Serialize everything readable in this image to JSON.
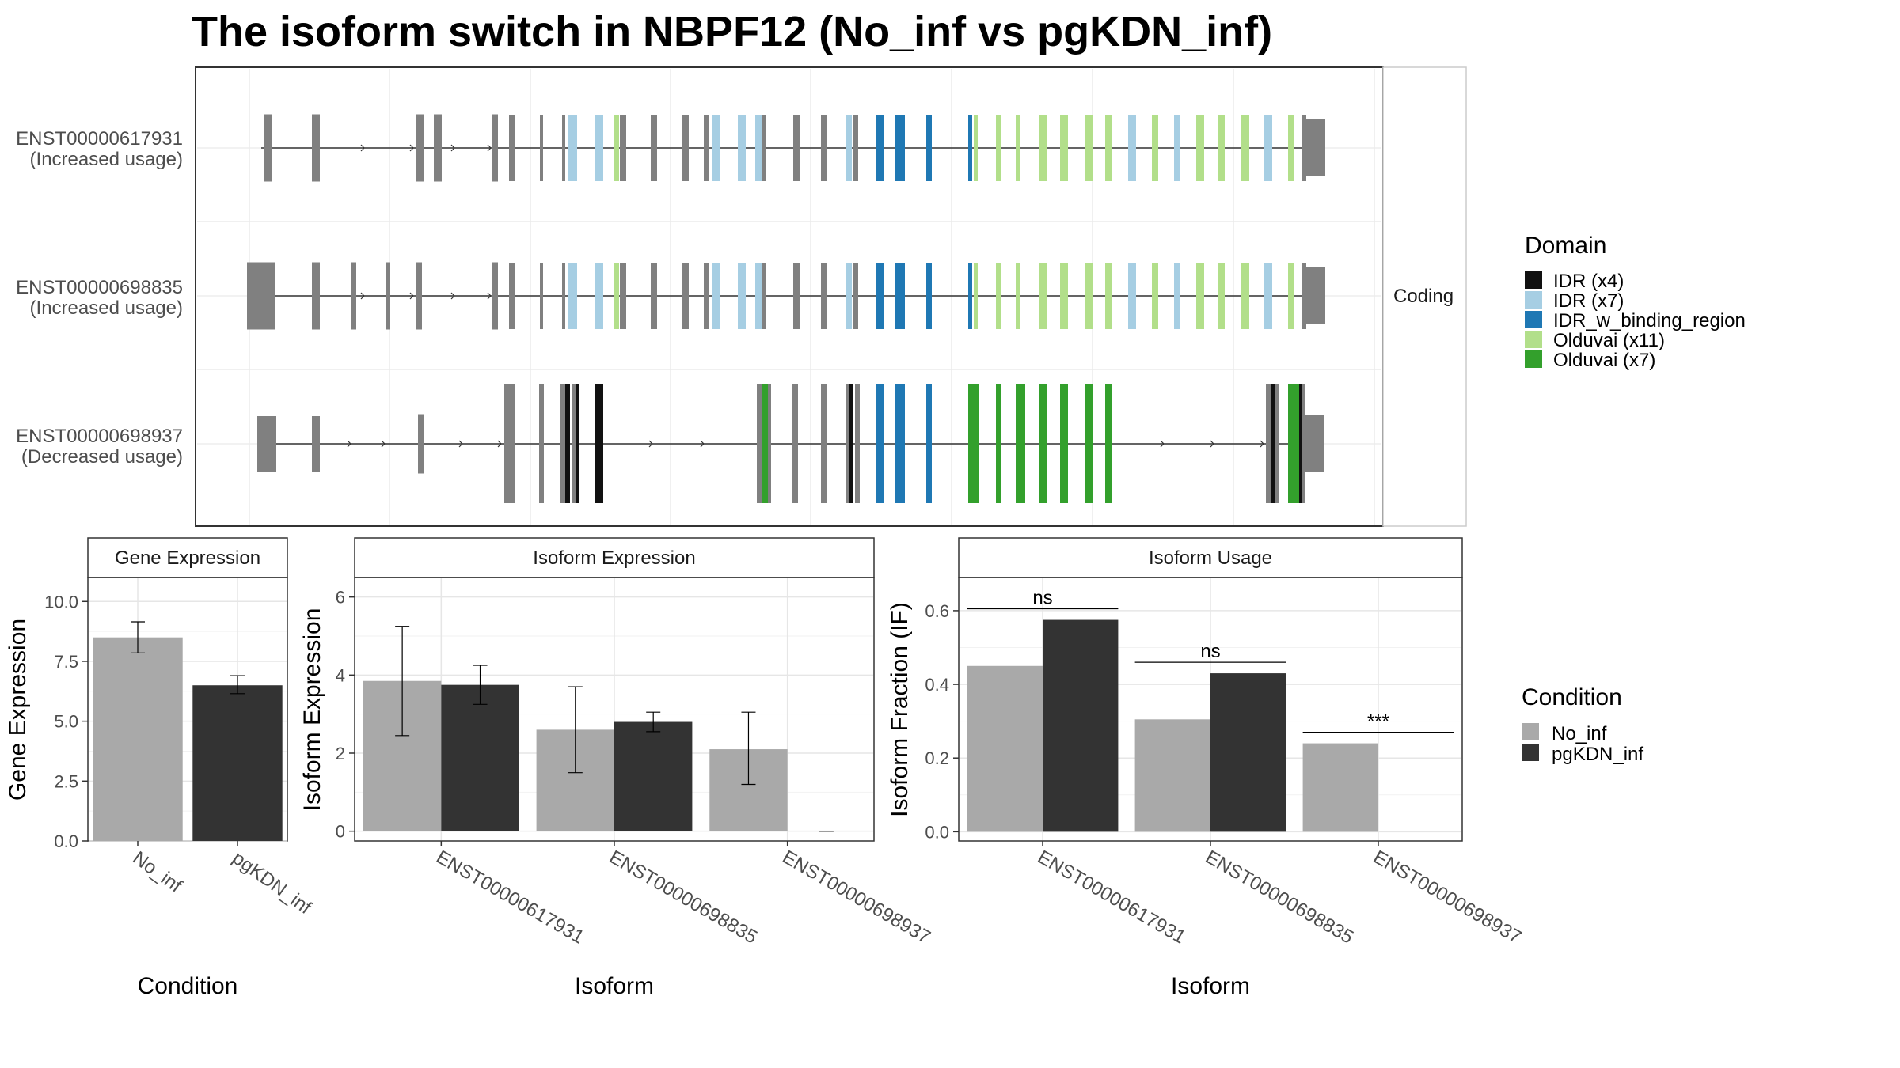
{
  "title": "The isoform switch in NBPF12 (No_inf vs pgKDN_inf)",
  "colors": {
    "No_inf": "#a9a9a9",
    "pgKDN_inf": "#333333",
    "exon_default": "#808080",
    "IDR_x4": "#111111",
    "IDR_x7": "#a6cee3",
    "IDR_w_binding_region": "#1f78b4",
    "Olduvai_x11": "#b2df8a",
    "Olduvai_x7": "#33a02c"
  },
  "chart_data": [
    {
      "type": "isoform_structure",
      "facet_label": "Coding",
      "isoforms": [
        {
          "id": "ENST00000617931",
          "usage": "(Increased usage)"
        },
        {
          "id": "ENST00000698835",
          "usage": "(Increased usage)"
        },
        {
          "id": "ENST00000698937",
          "usage": "(Decreased usage)"
        }
      ],
      "legend": {
        "title": "Domain",
        "entries": [
          {
            "label": "IDR (x4)",
            "color": "#111111"
          },
          {
            "label": "IDR (x7)",
            "color": "#a6cee3"
          },
          {
            "label": "IDR_w_binding_region",
            "color": "#1f78b4"
          },
          {
            "label": "Olduvai (x11)",
            "color": "#b2df8a"
          },
          {
            "label": "Olduvai (x7)",
            "color": "#33a02c"
          }
        ]
      }
    },
    {
      "type": "bar",
      "strip": "Gene Expression",
      "xlabel": "Condition",
      "ylabel": "Gene Expression",
      "categories": [
        "No_inf",
        "pgKDN_inf"
      ],
      "values": [
        8.5,
        6.5
      ],
      "errors": [
        [
          7.85,
          9.15
        ],
        [
          6.15,
          6.9
        ]
      ],
      "ylim": [
        0,
        11.0
      ],
      "ticks": [
        "0.0",
        "2.5",
        "5.0",
        "7.5",
        "10.0"
      ],
      "tick_values": [
        0,
        2.5,
        5,
        7.5,
        10
      ]
    },
    {
      "type": "bar",
      "strip": "Isoform Expression",
      "xlabel": "Isoform",
      "ylabel": "Isoform Expression",
      "categories": [
        "ENST00000617931",
        "ENST00000698835",
        "ENST00000698937"
      ],
      "series": [
        {
          "name": "No_inf",
          "values": [
            3.85,
            2.6,
            2.1
          ],
          "errors": [
            [
              2.45,
              5.25
            ],
            [
              1.5,
              3.7
            ],
            [
              1.2,
              3.05
            ]
          ]
        },
        {
          "name": "pgKDN_inf",
          "values": [
            3.75,
            2.8,
            0.0
          ],
          "errors": [
            [
              3.25,
              4.25
            ],
            [
              2.55,
              3.05
            ],
            [
              0.0,
              0.0
            ]
          ]
        }
      ],
      "ylim": [
        -0.25,
        6.5
      ],
      "ticks": [
        "0",
        "2",
        "4",
        "6"
      ],
      "tick_values": [
        0,
        2,
        4,
        6
      ]
    },
    {
      "type": "bar",
      "strip": "Isoform Usage",
      "xlabel": "Isoform",
      "ylabel": "Isoform Fraction (IF)",
      "categories": [
        "ENST00000617931",
        "ENST00000698835",
        "ENST00000698937"
      ],
      "series": [
        {
          "name": "No_inf",
          "values": [
            0.45,
            0.305,
            0.24
          ]
        },
        {
          "name": "pgKDN_inf",
          "values": [
            0.575,
            0.43,
            0.0
          ]
        }
      ],
      "significance": [
        "ns",
        "ns",
        "***"
      ],
      "ylim": [
        -0.025,
        0.69
      ],
      "ticks": [
        "0.0",
        "0.2",
        "0.4",
        "0.6"
      ],
      "tick_values": [
        0,
        0.2,
        0.4,
        0.6
      ],
      "legend": {
        "title": "Condition",
        "entries": [
          {
            "label": "No_inf",
            "color": "#a9a9a9"
          },
          {
            "label": "pgKDN_inf",
            "color": "#333333"
          }
        ]
      }
    }
  ]
}
